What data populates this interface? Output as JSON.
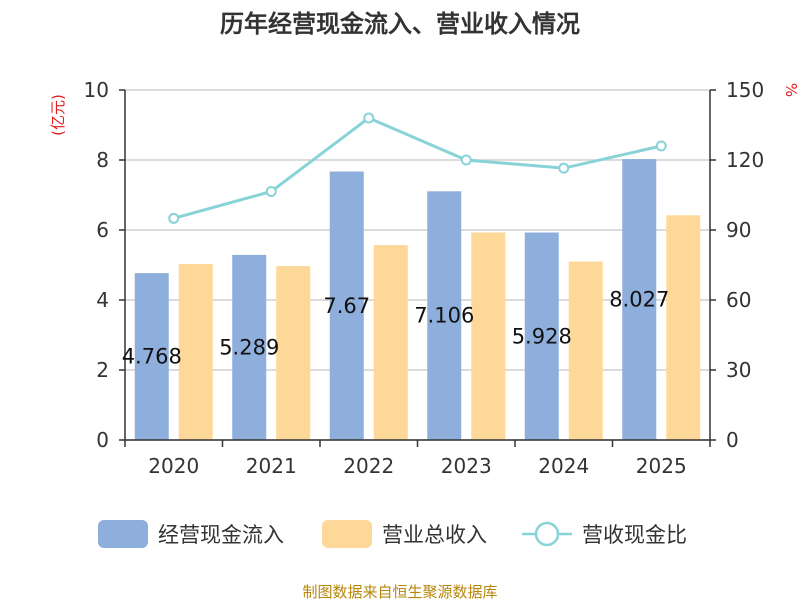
{
  "chart_data": {
    "type": "bar",
    "title": "历年经营现金流入、营业收入情况",
    "left_unit": "(亿元)",
    "right_unit": "%",
    "categories": [
      "2020",
      "2021",
      "2022",
      "2023",
      "2024",
      "2025"
    ],
    "left_axis": {
      "ylim": [
        0,
        10
      ],
      "ticks": [
        "0",
        "2",
        "4",
        "6",
        "8",
        "10"
      ]
    },
    "right_axis": {
      "ylim": [
        0,
        150
      ],
      "ticks": [
        "0",
        "30",
        "60",
        "90",
        "120",
        "150"
      ]
    },
    "series": [
      {
        "name": "经营现金流入",
        "type": "bar",
        "axis": "left",
        "color": "#8eaedb",
        "values": [
          4.768,
          5.289,
          7.67,
          7.106,
          5.928,
          8.027
        ],
        "labels": [
          "4.768",
          "5.289",
          "7.67",
          "7.106",
          "5.928",
          "8.027"
        ]
      },
      {
        "name": "营业总收入",
        "type": "bar",
        "axis": "left",
        "color": "#fdd898",
        "values": [
          5.03,
          4.97,
          5.57,
          5.93,
          5.1,
          6.42
        ]
      },
      {
        "name": "营收现金比",
        "type": "line",
        "axis": "right",
        "color": "#88d3d8",
        "values": [
          95.0,
          106.5,
          138.0,
          120.0,
          116.5,
          126.0
        ]
      }
    ],
    "grid": true,
    "legend_position": "bottom",
    "source": "制图数据来自恒生聚源数据库"
  }
}
